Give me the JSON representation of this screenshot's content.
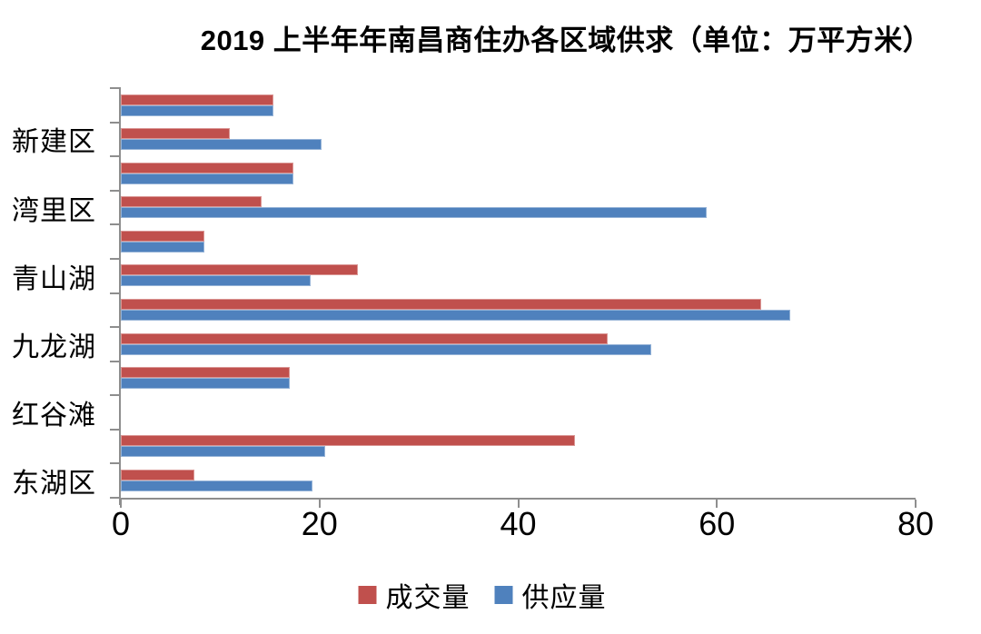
{
  "chart_data": {
    "type": "bar",
    "orientation": "horizontal",
    "title": "2019 上半年年南昌商住办各区域供求（单位：万平方米）",
    "categories": [
      "",
      "新建区",
      "",
      "湾里区",
      "",
      "青山湖",
      "",
      "九龙湖",
      "",
      "红谷滩",
      "",
      "东湖区"
    ],
    "series": [
      {
        "name": "成交量",
        "color": "#C0504D",
        "border_color": "#DA9694",
        "values": [
          15.4,
          11.0,
          17.4,
          14.2,
          8.4,
          23.9,
          64.5,
          49.0,
          17.0,
          0,
          45.7,
          7.4
        ]
      },
      {
        "name": "供应量",
        "color": "#4F81BD",
        "border_color": "#95B3D7",
        "values": [
          15.4,
          20.2,
          17.4,
          59.0,
          8.4,
          19.1,
          67.4,
          53.4,
          17.0,
          0,
          20.6,
          19.3
        ]
      }
    ],
    "xlim": [
      0,
      80
    ],
    "x_ticks": [
      "0",
      "20",
      "40",
      "60",
      "80"
    ],
    "xlabel": "",
    "ylabel": "",
    "grid": false,
    "legend_position": "bottom",
    "axis_color": "#8E8E8E"
  }
}
